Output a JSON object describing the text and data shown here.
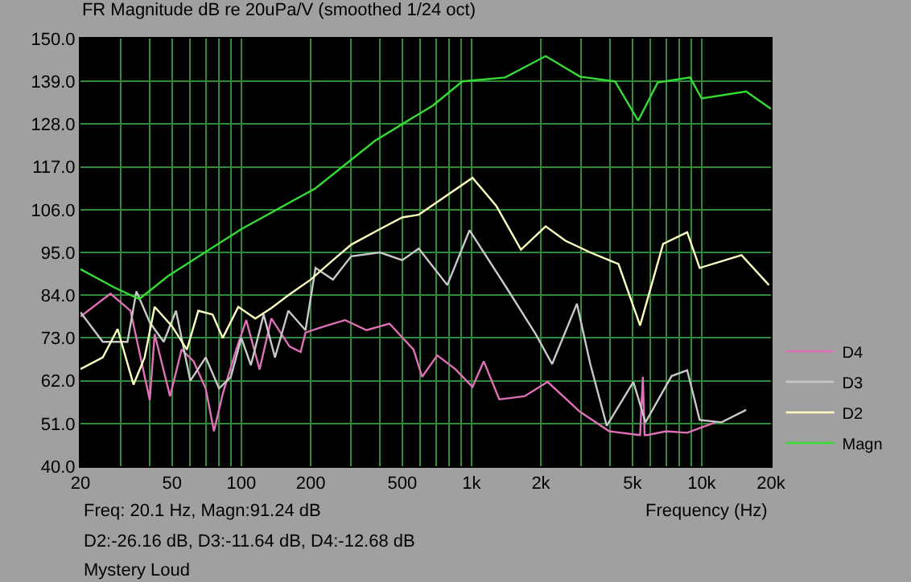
{
  "chart_data": {
    "type": "line",
    "title": "FR Magnitude dB re 20uPa/V (smoothed 1/24 oct)",
    "xlabel": "Frequency (Hz)",
    "annotations": [
      "Freq: 20.1 Hz, Magn:91.24 dB",
      "D2:-26.16 dB, D3:-11.64 dB, D4:-12.68 dB",
      "Mystery Loud"
    ],
    "log": "x",
    "grid": true,
    "legend": "bottom right",
    "marker": "none",
    "line_style": "solid",
    "xlim": [
      20,
      20000
    ],
    "xticks": [
      20,
      {
        "value": 30,
        "label": null
      },
      {
        "value": 40,
        "label": null
      },
      50,
      {
        "value": 60,
        "label": null
      },
      {
        "value": 70,
        "label": null
      },
      {
        "value": 80,
        "label": null
      },
      {
        "value": 90,
        "label": null
      },
      100,
      200,
      {
        "value": 300,
        "label": null
      },
      {
        "value": 400,
        "label": null
      },
      500,
      {
        "value": 600,
        "label": null
      },
      {
        "value": 700,
        "label": null
      },
      {
        "value": 800,
        "label": null
      },
      {
        "value": 900,
        "label": null
      },
      {
        "value": 1000,
        "label": "1k"
      },
      {
        "value": 2000,
        "label": "2k"
      },
      {
        "value": 3000,
        "label": null
      },
      {
        "value": 4000,
        "label": null
      },
      {
        "value": 5000,
        "label": "5k"
      },
      {
        "value": 6000,
        "label": null
      },
      {
        "value": 7000,
        "label": null
      },
      {
        "value": 8000,
        "label": null
      },
      {
        "value": 9000,
        "label": null
      },
      {
        "value": 10000,
        "label": "10k"
      },
      {
        "value": 20000,
        "label": "20k"
      }
    ],
    "ylim": [
      40,
      150
    ],
    "yticks": [
      {
        "value": 40,
        "label": "40.0"
      },
      {
        "value": 51,
        "label": "51.0"
      },
      {
        "value": 62,
        "label": "62.0"
      },
      {
        "value": 73,
        "label": "73.0"
      },
      {
        "value": 84,
        "label": "84.0"
      },
      {
        "value": 95,
        "label": "95.0"
      },
      {
        "value": 106,
        "label": "106.0"
      },
      {
        "value": 117,
        "label": "117.0"
      },
      {
        "value": 128,
        "label": "128.0"
      },
      {
        "value": 139,
        "label": "139.0"
      },
      {
        "value": 150,
        "label": "150.0"
      }
    ],
    "series": [
      {
        "name": "D4",
        "color": "#e070b8",
        "x": [
          20,
          27,
          33,
          40,
          42,
          49,
          55,
          62,
          70,
          76,
          83,
          95,
          105,
          120,
          135,
          162,
          181,
          190,
          230,
          282,
          350,
          440,
          560,
          610,
          710,
          850,
          1010,
          1130,
          1320,
          1700,
          2140,
          2960,
          3970,
          5400,
          5550,
          5650,
          5800,
          7000,
          8650,
          10000,
          11500
        ],
        "values": [
          78.5,
          84.4,
          80,
          57,
          74,
          58,
          70,
          67,
          60,
          49,
          58.6,
          70,
          77.6,
          64.9,
          78,
          70.8,
          69.4,
          74.4,
          76,
          77.6,
          75,
          76.7,
          70,
          63,
          68.5,
          65,
          60.4,
          67,
          57.2,
          58,
          61.7,
          54,
          49,
          48,
          63,
          48,
          48,
          49,
          48.6,
          50,
          51.3
        ]
      },
      {
        "name": "D3",
        "color": "#c8c8c8",
        "x": [
          20,
          25,
          32,
          35,
          40,
          46,
          52,
          60,
          70,
          80,
          90,
          100,
          110,
          125,
          140,
          160,
          190,
          210,
          250,
          300,
          400,
          500,
          590,
          785,
          980,
          1420,
          1900,
          2240,
          2870,
          3280,
          3870,
          5050,
          5700,
          7400,
          8650,
          9800,
          12200,
          15600
        ],
        "values": [
          79.6,
          72,
          72,
          85,
          77,
          72,
          80,
          62,
          68,
          60,
          63,
          73,
          66,
          79,
          68,
          80,
          75,
          91,
          88,
          94,
          95,
          93,
          96,
          86.6,
          100.7,
          85.9,
          74,
          66.3,
          81.8,
          66.3,
          50.4,
          61.7,
          51.3,
          63.2,
          64.7,
          51.9,
          51.3,
          54.5
        ]
      },
      {
        "name": "D2",
        "color": "#ffffc0",
        "x": [
          20,
          25,
          29,
          34,
          38,
          42,
          50,
          58,
          65,
          75,
          83,
          97,
          115,
          135,
          160,
          200,
          250,
          300,
          400,
          500,
          590,
          1010,
          1280,
          1640,
          2100,
          2560,
          3280,
          4350,
          5400,
          6800,
          8650,
          9800,
          14900,
          19600
        ],
        "values": [
          65,
          68,
          75.3,
          61,
          68,
          81,
          76,
          70,
          80,
          79,
          73,
          81,
          78,
          80.7,
          84,
          88,
          93,
          97,
          101,
          104,
          104.7,
          114.2,
          107,
          95.7,
          101.7,
          98,
          95,
          92,
          76.2,
          97.2,
          100.2,
          91,
          94.3,
          86.6
        ]
      },
      {
        "name": "Magn",
        "color": "#33dd33",
        "x": [
          20,
          28,
          36,
          48,
          100,
          210,
          380,
          680,
          912,
          1400,
          2100,
          2960,
          4200,
          5300,
          6440,
          8900,
          10000,
          15600,
          20000
        ],
        "values": [
          90.7,
          86,
          83,
          88.9,
          101,
          111.5,
          123.7,
          132.8,
          139,
          140,
          145.5,
          140.2,
          139,
          128.9,
          138.7,
          140,
          134.6,
          136.4,
          131.9
        ]
      }
    ]
  }
}
